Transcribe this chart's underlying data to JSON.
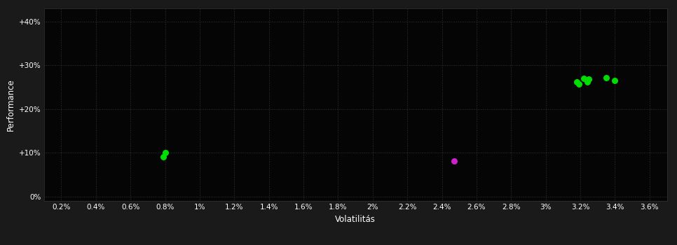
{
  "background_color": "#1a1a1a",
  "plot_bg_color": "#050505",
  "grid_color": "#333333",
  "xlabel": "Volatilitás",
  "ylabel": "Performance",
  "xlim": [
    0.001,
    0.037
  ],
  "ylim": [
    -0.01,
    0.43
  ],
  "xticks": [
    0.002,
    0.004,
    0.006,
    0.008,
    0.01,
    0.012,
    0.014,
    0.016,
    0.018,
    0.02,
    0.022,
    0.024,
    0.026,
    0.028,
    0.03,
    0.032,
    0.034,
    0.036
  ],
  "yticks": [
    0.0,
    0.1,
    0.2,
    0.3,
    0.4
  ],
  "ytick_labels": [
    "0%",
    "+10%",
    "+20%",
    "+30%",
    "+40%"
  ],
  "xtick_labels": [
    "0.2%",
    "0.4%",
    "0.6%",
    "0.8%",
    "1%",
    "1.2%",
    "1.4%",
    "1.6%",
    "1.8%",
    "2%",
    "2.2%",
    "2.4%",
    "2.6%",
    "2.8%",
    "3%",
    "3.2%",
    "3.4%",
    "3.6%"
  ],
  "green_points": [
    [
      0.008,
      0.1
    ],
    [
      0.0079,
      0.091
    ],
    [
      0.0318,
      0.263
    ],
    [
      0.0319,
      0.257
    ],
    [
      0.0322,
      0.27
    ],
    [
      0.0324,
      0.263
    ],
    [
      0.0325,
      0.268
    ],
    [
      0.0335,
      0.272
    ],
    [
      0.034,
      0.265
    ]
  ],
  "magenta_points": [
    [
      0.0247,
      0.082
    ]
  ],
  "point_size": 30,
  "green_color": "#00dd00",
  "magenta_color": "#cc22cc",
  "text_color": "#ffffff",
  "tick_fontsize": 7.5,
  "label_fontsize": 8.5,
  "figsize": [
    9.66,
    3.5
  ],
  "dpi": 100
}
